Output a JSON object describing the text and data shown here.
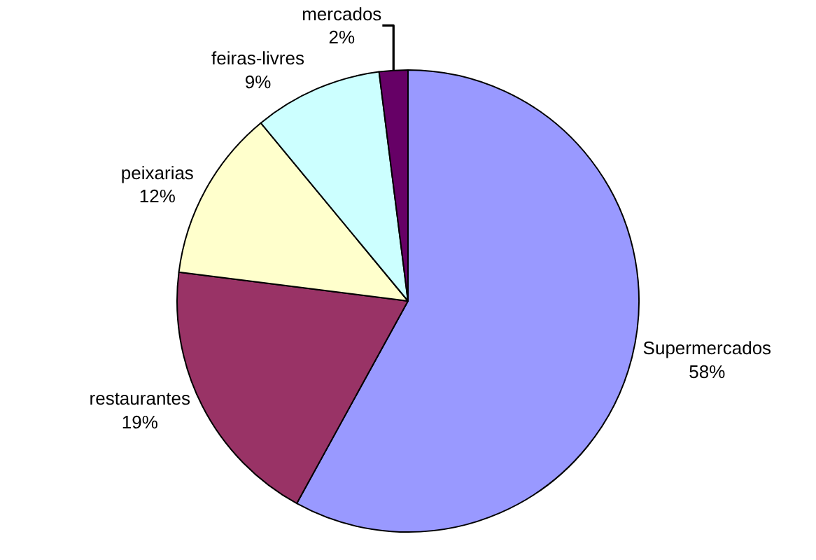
{
  "chart_data": {
    "type": "pie",
    "categories": [
      "Supermercados",
      "restaurantes",
      "peixarias",
      "feiras-livres",
      "mercados"
    ],
    "values": [
      58,
      19,
      12,
      9,
      2
    ],
    "value_labels": [
      "58%",
      "19%",
      "12%",
      "9%",
      "2%"
    ],
    "colors": [
      "#9999ff",
      "#993366",
      "#ffffcc",
      "#ccffff",
      "#660066"
    ],
    "legend": false
  }
}
